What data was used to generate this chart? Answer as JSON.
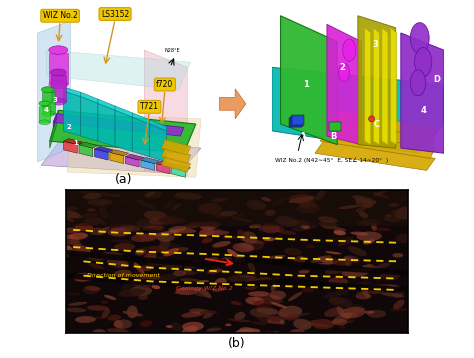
{
  "fig_width": 4.74,
  "fig_height": 3.58,
  "dpi": 100,
  "bg_color": "#ffffff",
  "label_a": "(a)",
  "label_b": "(b)",
  "wiz_label": "WIZ No.2 (N42∼45°  E, SE∠ 14∼20°  )"
}
